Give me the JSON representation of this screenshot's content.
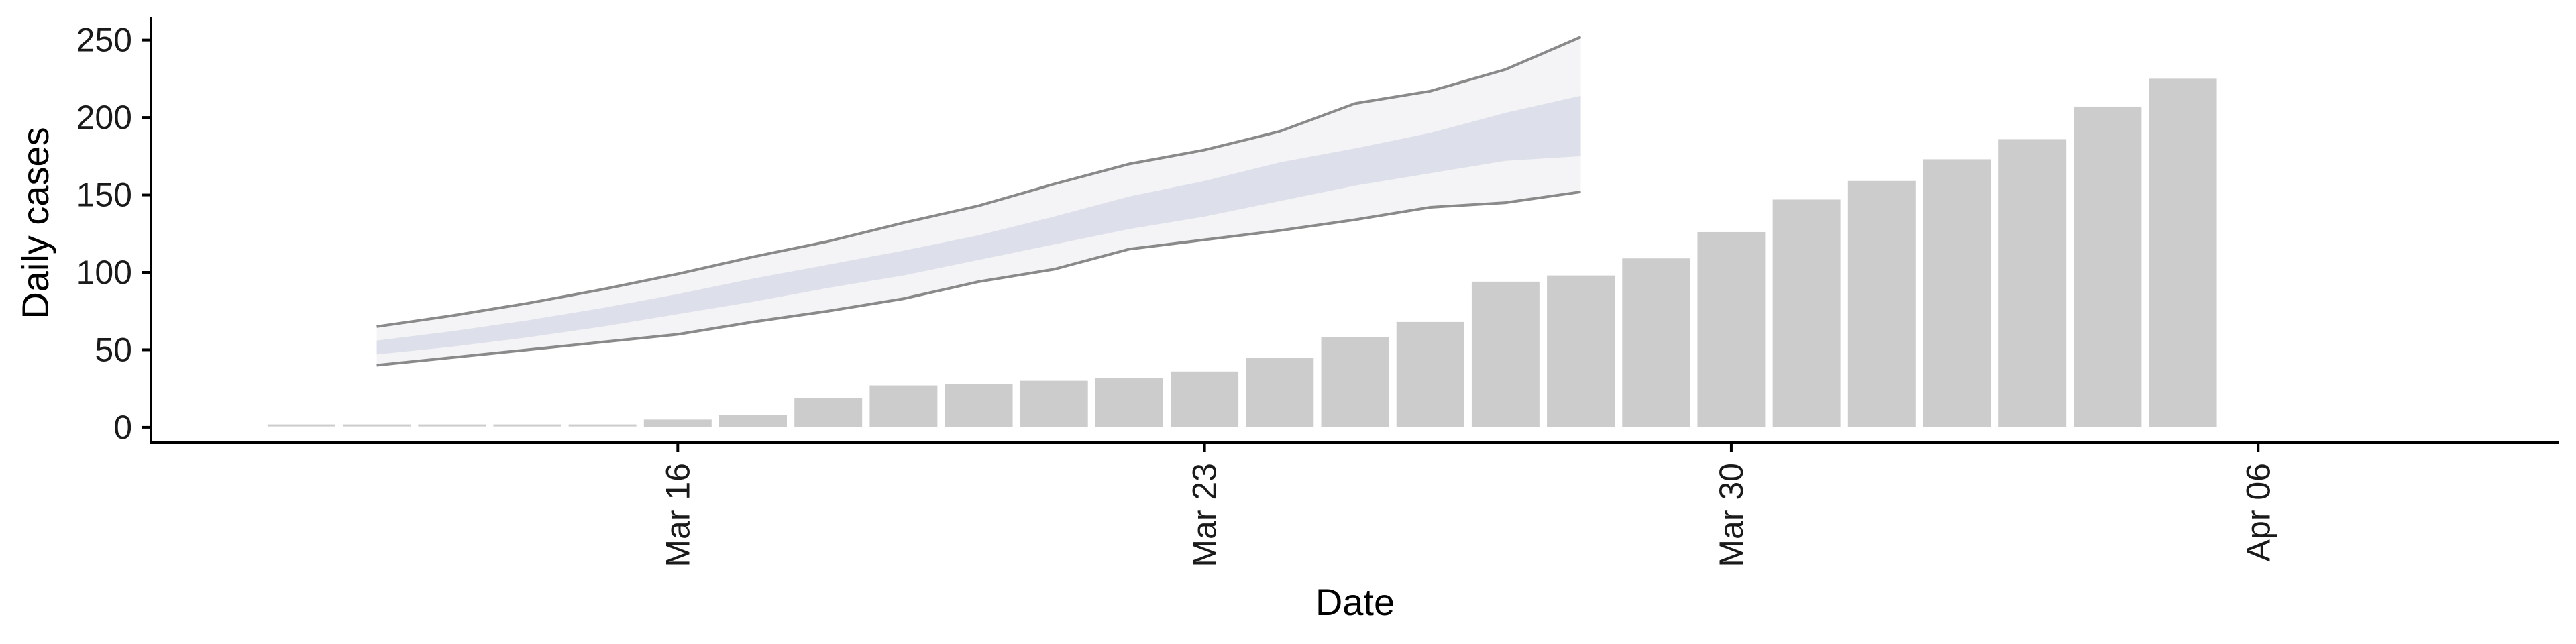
{
  "chart_data": {
    "type": "bar",
    "xlabel": "Date",
    "ylabel": "Daily cases",
    "ylim": [
      -10,
      265
    ],
    "xlim": [
      "2020-03-09",
      "2020-04-10"
    ],
    "yticks": [
      0,
      50,
      100,
      150,
      200,
      250
    ],
    "xticks": [
      {
        "date": "2020-03-16",
        "label": "Mar 16"
      },
      {
        "date": "2020-03-23",
        "label": "Mar 23"
      },
      {
        "date": "2020-03-30",
        "label": "Mar 30"
      },
      {
        "date": "2020-04-06",
        "label": "Apr 06"
      }
    ],
    "grid": false,
    "legend": "none",
    "series": [
      {
        "type": "bar",
        "color": "#cccccc",
        "x": [
          "2020-03-11",
          "2020-03-12",
          "2020-03-13",
          "2020-03-14",
          "2020-03-15",
          "2020-03-16",
          "2020-03-17",
          "2020-03-18",
          "2020-03-19",
          "2020-03-20",
          "2020-03-21",
          "2020-03-22",
          "2020-03-23",
          "2020-03-24",
          "2020-03-25",
          "2020-03-26",
          "2020-03-27",
          "2020-03-28",
          "2020-03-29",
          "2020-03-30",
          "2020-03-31",
          "2020-04-01",
          "2020-04-02",
          "2020-04-03",
          "2020-04-04",
          "2020-04-05",
          "2020-04-06"
        ],
        "values": [
          1,
          1,
          1,
          1,
          1,
          5,
          8,
          19,
          27,
          28,
          30,
          32,
          36,
          45,
          58,
          68,
          94,
          98,
          109,
          126,
          147,
          159,
          173,
          186,
          207,
          225,
          0
        ]
      },
      {
        "type": "band",
        "x": [
          "2020-03-12",
          "2020-03-13",
          "2020-03-14",
          "2020-03-15",
          "2020-03-16",
          "2020-03-17",
          "2020-03-18",
          "2020-03-19",
          "2020-03-20",
          "2020-03-21",
          "2020-03-22",
          "2020-03-23",
          "2020-03-24",
          "2020-03-25",
          "2020-03-26",
          "2020-03-27",
          "2020-03-28"
        ],
        "outer_low": [
          40,
          45,
          50,
          55,
          60,
          68,
          75,
          83,
          94,
          102,
          115,
          121,
          127,
          134,
          142,
          145,
          152
        ],
        "outer_high": [
          65,
          72,
          80,
          89,
          99,
          110,
          120,
          132,
          143,
          157,
          170,
          179,
          191,
          209,
          217,
          231,
          252
        ],
        "inner_low": [
          47,
          52,
          58,
          65,
          73,
          81,
          90,
          98,
          108,
          118,
          128,
          136,
          146,
          156,
          164,
          172,
          175
        ],
        "inner_high": [
          56,
          62,
          69,
          77,
          86,
          96,
          105,
          114,
          124,
          136,
          149,
          159,
          171,
          180,
          190,
          203,
          214
        ]
      }
    ],
    "colors": {
      "outer_fill": "#f4f4f7",
      "inner_fill": "#dde0ea",
      "band_line": "#8a8a8a",
      "axis": "#000000"
    }
  },
  "x_axis": {
    "title": "Date",
    "ticks": [
      "Mar 16",
      "Mar 23",
      "Mar 30",
      "Apr 06"
    ]
  },
  "y_axis": {
    "title": "Daily cases",
    "ticks": [
      "0",
      "50",
      "100",
      "150",
      "200",
      "250"
    ]
  }
}
